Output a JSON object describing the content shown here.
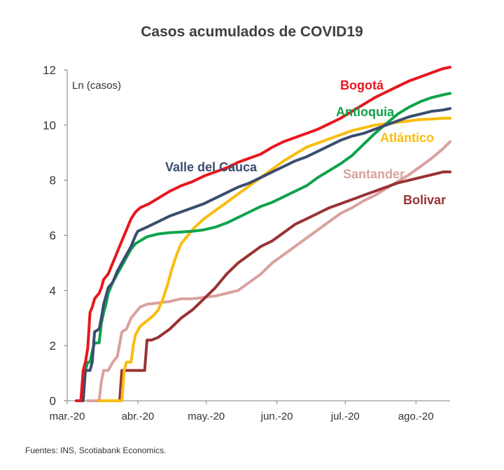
{
  "title": "Casos acumulados de COVID19",
  "source": "Fuentes: INS, Scotiabank Economics.",
  "chart_data": {
    "type": "line",
    "title": "Casos acumulados de COVID19",
    "ylabel": "Ln (casos)",
    "xlabel": "",
    "ylim": [
      0,
      12
    ],
    "xlim": [
      0,
      168
    ],
    "yticks": [
      0,
      2,
      4,
      6,
      8,
      10,
      12
    ],
    "xticks": [
      {
        "label": "mar.-20",
        "x": 0
      },
      {
        "label": "abr.-20",
        "x": 31
      },
      {
        "label": "may.-20",
        "x": 61
      },
      {
        "label": "jun.-20",
        "x": 92
      },
      {
        "label": "jul.-20",
        "x": 122
      },
      {
        "label": "ago.-20",
        "x": 153
      }
    ],
    "grid": false,
    "series": [
      {
        "name": "Bogotá",
        "color": "#e8161f",
        "points": [
          [
            4,
            0
          ],
          [
            6,
            0
          ],
          [
            7,
            1.1
          ],
          [
            8,
            1.4
          ],
          [
            9,
            1.9
          ],
          [
            10,
            3.2
          ],
          [
            11,
            3.4
          ],
          [
            12,
            3.7
          ],
          [
            13,
            3.8
          ],
          [
            14,
            3.9
          ],
          [
            15,
            4.1
          ],
          [
            16,
            4.4
          ],
          [
            17,
            4.5
          ],
          [
            18,
            4.6
          ],
          [
            20,
            5.0
          ],
          [
            21,
            5.2
          ],
          [
            22,
            5.4
          ],
          [
            24,
            5.8
          ],
          [
            26,
            6.2
          ],
          [
            28,
            6.6
          ],
          [
            30,
            6.85
          ],
          [
            32,
            7.0
          ],
          [
            36,
            7.15
          ],
          [
            40,
            7.35
          ],
          [
            45,
            7.6
          ],
          [
            50,
            7.8
          ],
          [
            55,
            7.95
          ],
          [
            60,
            8.15
          ],
          [
            65,
            8.3
          ],
          [
            70,
            8.45
          ],
          [
            75,
            8.65
          ],
          [
            80,
            8.8
          ],
          [
            85,
            8.95
          ],
          [
            90,
            9.2
          ],
          [
            95,
            9.4
          ],
          [
            100,
            9.55
          ],
          [
            105,
            9.7
          ],
          [
            110,
            9.85
          ],
          [
            115,
            10.05
          ],
          [
            120,
            10.25
          ],
          [
            125,
            10.5
          ],
          [
            130,
            10.75
          ],
          [
            135,
            11.0
          ],
          [
            140,
            11.2
          ],
          [
            145,
            11.4
          ],
          [
            150,
            11.6
          ],
          [
            155,
            11.75
          ],
          [
            160,
            11.9
          ],
          [
            165,
            12.05
          ],
          [
            168,
            12.1
          ]
        ]
      },
      {
        "name": "Antioquia",
        "color": "#0ea34b",
        "points": [
          [
            4,
            0
          ],
          [
            7,
            0
          ],
          [
            8,
            1.1
          ],
          [
            9,
            1.4
          ],
          [
            10,
            1.4
          ],
          [
            11,
            1.8
          ],
          [
            12,
            2.1
          ],
          [
            14,
            2.1
          ],
          [
            15,
            2.8
          ],
          [
            16,
            3.2
          ],
          [
            17,
            3.5
          ],
          [
            18,
            3.9
          ],
          [
            19,
            4.1
          ],
          [
            20,
            4.3
          ],
          [
            22,
            4.6
          ],
          [
            24,
            4.9
          ],
          [
            26,
            5.2
          ],
          [
            28,
            5.5
          ],
          [
            30,
            5.7
          ],
          [
            35,
            5.95
          ],
          [
            40,
            6.05
          ],
          [
            45,
            6.1
          ],
          [
            50,
            6.12
          ],
          [
            55,
            6.15
          ],
          [
            60,
            6.2
          ],
          [
            65,
            6.3
          ],
          [
            70,
            6.45
          ],
          [
            75,
            6.65
          ],
          [
            80,
            6.85
          ],
          [
            85,
            7.05
          ],
          [
            90,
            7.2
          ],
          [
            95,
            7.4
          ],
          [
            100,
            7.6
          ],
          [
            105,
            7.8
          ],
          [
            110,
            8.1
          ],
          [
            115,
            8.35
          ],
          [
            120,
            8.6
          ],
          [
            125,
            8.9
          ],
          [
            130,
            9.3
          ],
          [
            135,
            9.7
          ],
          [
            140,
            10.05
          ],
          [
            145,
            10.4
          ],
          [
            150,
            10.65
          ],
          [
            155,
            10.85
          ],
          [
            160,
            11.0
          ],
          [
            165,
            11.1
          ],
          [
            168,
            11.15
          ]
        ]
      },
      {
        "name": "Valle del Cauca",
        "color": "#3a4d6f",
        "points": [
          [
            4,
            0
          ],
          [
            7,
            0
          ],
          [
            8,
            1.1
          ],
          [
            9,
            1.1
          ],
          [
            10,
            1.1
          ],
          [
            11,
            1.4
          ],
          [
            12,
            2.5
          ],
          [
            14,
            2.6
          ],
          [
            15,
            3.0
          ],
          [
            16,
            3.5
          ],
          [
            17,
            3.8
          ],
          [
            18,
            4.1
          ],
          [
            20,
            4.3
          ],
          [
            22,
            4.7
          ],
          [
            24,
            5.0
          ],
          [
            26,
            5.3
          ],
          [
            28,
            5.6
          ],
          [
            30,
            6.0
          ],
          [
            31,
            6.15
          ],
          [
            35,
            6.3
          ],
          [
            40,
            6.5
          ],
          [
            45,
            6.7
          ],
          [
            50,
            6.85
          ],
          [
            55,
            7.0
          ],
          [
            60,
            7.15
          ],
          [
            65,
            7.35
          ],
          [
            70,
            7.55
          ],
          [
            75,
            7.75
          ],
          [
            80,
            7.9
          ],
          [
            85,
            8.1
          ],
          [
            90,
            8.3
          ],
          [
            95,
            8.5
          ],
          [
            100,
            8.7
          ],
          [
            105,
            8.85
          ],
          [
            110,
            9.05
          ],
          [
            115,
            9.25
          ],
          [
            120,
            9.45
          ],
          [
            125,
            9.6
          ],
          [
            130,
            9.7
          ],
          [
            135,
            9.85
          ],
          [
            140,
            10.0
          ],
          [
            145,
            10.15
          ],
          [
            150,
            10.3
          ],
          [
            155,
            10.4
          ],
          [
            160,
            10.5
          ],
          [
            165,
            10.55
          ],
          [
            168,
            10.6
          ]
        ]
      },
      {
        "name": "Atlántico",
        "color": "#fbbc0e",
        "points": [
          [
            14,
            0
          ],
          [
            24,
            0
          ],
          [
            25,
            1.1
          ],
          [
            26,
            1.4
          ],
          [
            28,
            1.4
          ],
          [
            29,
            2.0
          ],
          [
            30,
            2.4
          ],
          [
            32,
            2.7
          ],
          [
            35,
            2.9
          ],
          [
            38,
            3.1
          ],
          [
            40,
            3.3
          ],
          [
            42,
            3.7
          ],
          [
            44,
            4.2
          ],
          [
            46,
            4.8
          ],
          [
            48,
            5.3
          ],
          [
            50,
            5.7
          ],
          [
            53,
            6.0
          ],
          [
            56,
            6.3
          ],
          [
            60,
            6.6
          ],
          [
            65,
            6.9
          ],
          [
            70,
            7.2
          ],
          [
            75,
            7.5
          ],
          [
            80,
            7.8
          ],
          [
            85,
            8.1
          ],
          [
            90,
            8.4
          ],
          [
            95,
            8.7
          ],
          [
            100,
            8.95
          ],
          [
            105,
            9.2
          ],
          [
            110,
            9.35
          ],
          [
            115,
            9.5
          ],
          [
            120,
            9.65
          ],
          [
            125,
            9.8
          ],
          [
            130,
            9.9
          ],
          [
            135,
            10.0
          ],
          [
            140,
            10.05
          ],
          [
            145,
            10.1
          ],
          [
            150,
            10.15
          ],
          [
            155,
            10.2
          ],
          [
            160,
            10.22
          ],
          [
            165,
            10.25
          ],
          [
            168,
            10.25
          ]
        ]
      },
      {
        "name": "Santander",
        "color": "#d9a19e",
        "points": [
          [
            9,
            0
          ],
          [
            14,
            0
          ],
          [
            15,
            0.7
          ],
          [
            16,
            1.1
          ],
          [
            18,
            1.1
          ],
          [
            20,
            1.4
          ],
          [
            22,
            1.6
          ],
          [
            24,
            2.5
          ],
          [
            26,
            2.6
          ],
          [
            28,
            3.0
          ],
          [
            30,
            3.2
          ],
          [
            32,
            3.4
          ],
          [
            35,
            3.5
          ],
          [
            40,
            3.55
          ],
          [
            45,
            3.6
          ],
          [
            50,
            3.7
          ],
          [
            55,
            3.7
          ],
          [
            60,
            3.75
          ],
          [
            65,
            3.8
          ],
          [
            70,
            3.9
          ],
          [
            75,
            4.0
          ],
          [
            80,
            4.3
          ],
          [
            85,
            4.6
          ],
          [
            90,
            5.0
          ],
          [
            95,
            5.3
          ],
          [
            100,
            5.6
          ],
          [
            105,
            5.9
          ],
          [
            110,
            6.2
          ],
          [
            115,
            6.5
          ],
          [
            120,
            6.8
          ],
          [
            125,
            7.0
          ],
          [
            130,
            7.25
          ],
          [
            135,
            7.45
          ],
          [
            140,
            7.7
          ],
          [
            145,
            7.95
          ],
          [
            150,
            8.2
          ],
          [
            155,
            8.5
          ],
          [
            160,
            8.8
          ],
          [
            165,
            9.15
          ],
          [
            168,
            9.4
          ]
        ]
      },
      {
        "name": "Bolivar",
        "color": "#993234",
        "points": [
          [
            14,
            0
          ],
          [
            23,
            0
          ],
          [
            24,
            1.1
          ],
          [
            26,
            1.1
          ],
          [
            28,
            1.1
          ],
          [
            30,
            1.1
          ],
          [
            34,
            1.1
          ],
          [
            35,
            2.2
          ],
          [
            37,
            2.2
          ],
          [
            40,
            2.3
          ],
          [
            45,
            2.6
          ],
          [
            50,
            3.0
          ],
          [
            55,
            3.3
          ],
          [
            60,
            3.7
          ],
          [
            65,
            4.1
          ],
          [
            70,
            4.6
          ],
          [
            75,
            5.0
          ],
          [
            80,
            5.3
          ],
          [
            85,
            5.6
          ],
          [
            90,
            5.8
          ],
          [
            95,
            6.1
          ],
          [
            100,
            6.4
          ],
          [
            105,
            6.6
          ],
          [
            110,
            6.8
          ],
          [
            115,
            7.0
          ],
          [
            120,
            7.15
          ],
          [
            125,
            7.3
          ],
          [
            130,
            7.45
          ],
          [
            135,
            7.6
          ],
          [
            140,
            7.75
          ],
          [
            145,
            7.9
          ],
          [
            150,
            8.0
          ],
          [
            155,
            8.1
          ],
          [
            160,
            8.2
          ],
          [
            165,
            8.3
          ],
          [
            168,
            8.3
          ]
        ]
      }
    ]
  }
}
